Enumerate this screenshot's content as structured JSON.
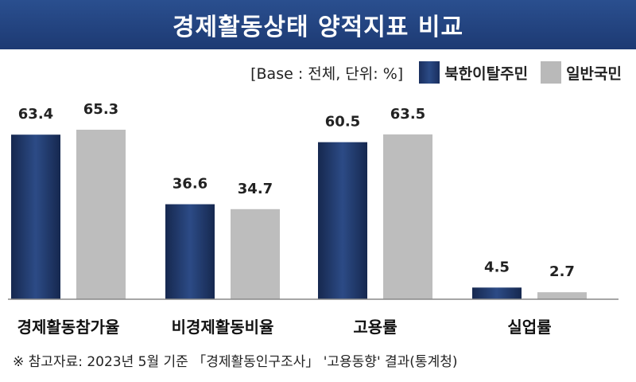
{
  "title": "경제활동상태 양적지표 비교",
  "legend": {
    "base": "[Base : 전체, 단위: %]",
    "items": [
      "북한이탈주민",
      "일반국민"
    ]
  },
  "footnote": "※ 참고자료: 2023년 5월 기준 「경제활동인구조사」 '고용동향' 결과(통계청)",
  "colors": {
    "nk": "#1f3a6e",
    "general": "#bdbdbd",
    "title_bg": "#234684"
  },
  "chart_data": {
    "type": "bar",
    "categories": [
      "경제활동참가율",
      "비경제활동비율",
      "고용률",
      "실업률"
    ],
    "series": [
      {
        "name": "북한이탈주민",
        "values": [
          63.4,
          36.6,
          60.5,
          4.5
        ]
      },
      {
        "name": "일반국민",
        "values": [
          65.3,
          34.7,
          63.5,
          2.7
        ]
      }
    ],
    "value_labels": [
      [
        "63.4",
        "36.6",
        "60.5",
        "4.5"
      ],
      [
        "65.3",
        "34.7",
        "63.5",
        "2.7"
      ]
    ],
    "ylim": [
      0,
      65.3
    ],
    "grid": false,
    "legend_position": "top-right"
  }
}
